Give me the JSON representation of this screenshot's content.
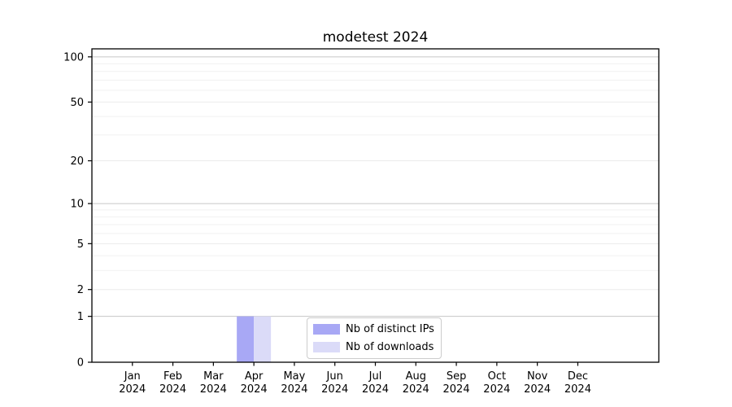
{
  "chart_data": {
    "type": "bar",
    "title": "modetest 2024",
    "categories": [
      "Jan",
      "Feb",
      "Mar",
      "Apr",
      "May",
      "Jun",
      "Jul",
      "Aug",
      "Sep",
      "Oct",
      "Nov",
      "Dec"
    ],
    "category_year": "2024",
    "series": [
      {
        "name": "Nb of distinct IPs",
        "color": "#a8a8f5",
        "values": [
          0,
          0,
          0,
          1,
          0,
          0,
          0,
          0,
          0,
          0,
          0,
          0
        ]
      },
      {
        "name": "Nb of downloads",
        "color": "#dbdbf8",
        "values": [
          0,
          0,
          0,
          1,
          0,
          0,
          0,
          0,
          0,
          0,
          0,
          0
        ]
      }
    ],
    "xlabel": "",
    "ylabel": "",
    "y_axis": {
      "scale": "log1p",
      "ylim": [
        0,
        113
      ],
      "labeled_ticks": [
        0,
        1,
        2,
        5,
        10,
        20,
        50,
        100
      ],
      "decade_ticks": [
        1,
        10,
        100
      ],
      "minor_ticks": [
        3,
        4,
        6,
        7,
        8,
        9,
        30,
        40,
        60,
        70,
        80,
        90
      ]
    },
    "legend_position": "lower center",
    "grid": "on",
    "colors": {
      "decade_gridline": "#c6c6c6",
      "major_gridline": "#ebebeb",
      "minor_gridline": "#f1f1f1",
      "axis": "#000000"
    }
  }
}
